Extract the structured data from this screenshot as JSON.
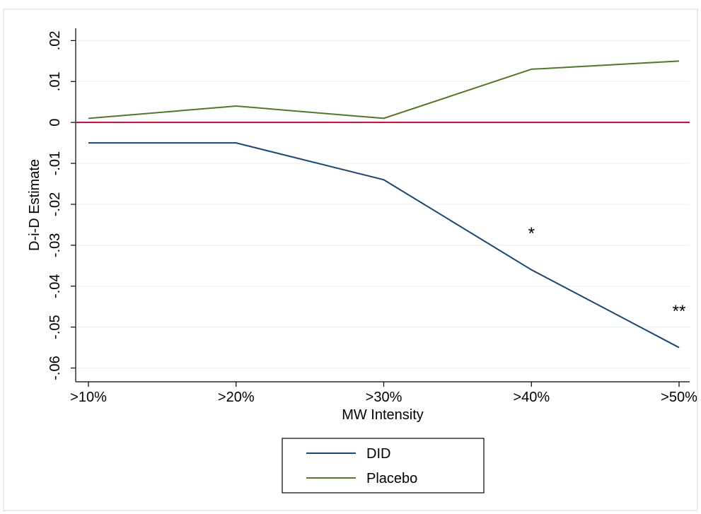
{
  "chart_data": {
    "type": "line",
    "xlabel": "MW Intensity",
    "ylabel": "D-i-D Estimate",
    "categories": [
      ">10%",
      ">20%",
      ">30%",
      ">40%",
      ">50%"
    ],
    "ylim": [
      -0.062,
      0.022
    ],
    "yticks": [
      0.02,
      0.01,
      0,
      -0.01,
      -0.02,
      -0.03,
      -0.04,
      -0.05,
      -0.06
    ],
    "ytick_labels": [
      ".02",
      ".01",
      "0",
      "-.01",
      "-.02",
      "-.03",
      "-.04",
      "-.05",
      "-.06"
    ],
    "grid": true,
    "reference_line": {
      "y": 0,
      "color": "#b00c3c"
    },
    "series": [
      {
        "name": "DID",
        "color": "#1a476f",
        "values": [
          -0.005,
          -0.005,
          -0.014,
          -0.036,
          -0.055
        ]
      },
      {
        "name": "Placebo",
        "color": "#55752f",
        "values": [
          0.001,
          0.004,
          0.001,
          0.013,
          0.015
        ]
      }
    ],
    "annotations": [
      {
        "text": "*",
        "category": ">40%",
        "y": -0.0285
      },
      {
        "text": "**",
        "category": ">50%",
        "y": -0.0475
      }
    ],
    "legend": {
      "position": "bottom",
      "entries": [
        "DID",
        "Placebo"
      ]
    }
  }
}
